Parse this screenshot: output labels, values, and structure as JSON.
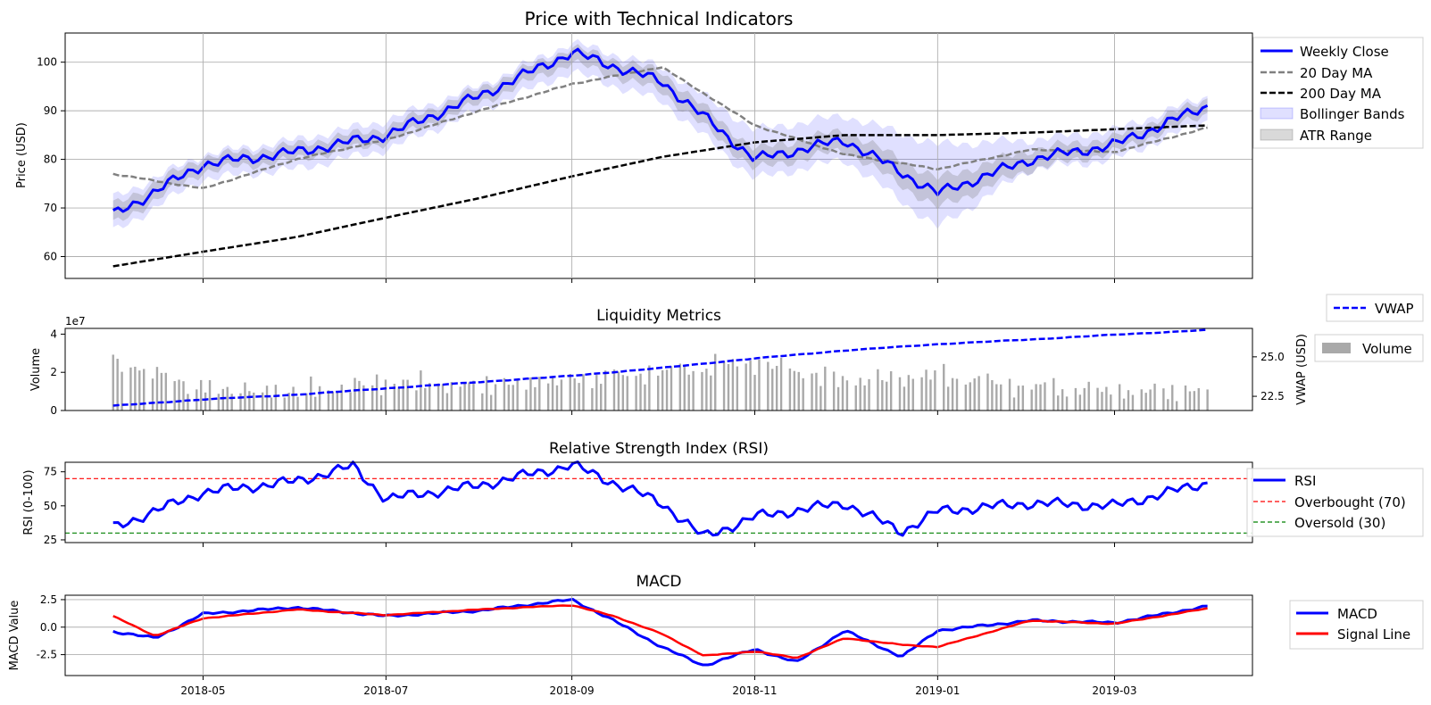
{
  "colors": {
    "close": "#0000ff",
    "ma20": "#808080",
    "ma200": "#000000",
    "bollinger": "#0000ff",
    "atr": "#808080",
    "vwap": "#0000ff",
    "volume": "#a9a9a9",
    "rsi": "#0000ff",
    "overbought": "#ff0000",
    "oversold": "#008000",
    "macd": "#0000ff",
    "signal": "#ff0000"
  },
  "x_ticks": [
    "2018-05",
    "2018-07",
    "2018-09",
    "2018-11",
    "2019-01",
    "2019-03"
  ],
  "chart_data": [
    {
      "type": "line",
      "title": "Price with Technical Indicators",
      "xlabel": "",
      "ylabel": "Price (USD)",
      "ylim": [
        55.5,
        106
      ],
      "yticks": [
        "60",
        "70",
        "80",
        "90",
        "100"
      ],
      "grid": true,
      "legend_position": "right",
      "x_range": [
        "2018-03-16",
        "2019-04-16"
      ],
      "x": [
        "2018-04-01",
        "2018-05-01",
        "2018-06-01",
        "2018-07-01",
        "2018-08-01",
        "2018-09-01",
        "2018-10-01",
        "2018-11-01",
        "2018-12-01",
        "2019-01-01",
        "2019-02-01",
        "2019-03-01",
        "2019-04-01"
      ],
      "series": [
        {
          "name": "Weekly Close",
          "values": [
            68.5,
            79,
            81.5,
            85,
            93,
            102,
            96,
            80,
            84,
            73,
            80,
            83,
            91
          ]
        },
        {
          "name": "20 Day MA",
          "values": [
            77,
            74,
            80,
            84,
            90,
            95.5,
            99,
            87,
            81,
            78,
            82,
            81.5,
            86.5
          ]
        },
        {
          "name": "200 Day MA",
          "values": [
            58,
            61,
            64,
            68,
            72,
            76.5,
            80.5,
            83.5,
            85,
            85,
            85.5,
            86.2,
            87
          ]
        },
        {
          "name": "Bollinger Bands",
          "band": "upper/lower envelope around Weekly Close",
          "upper": [
            72,
            81,
            84,
            88,
            95,
            104,
            99,
            86,
            89,
            83,
            84,
            86,
            93
          ],
          "lower": [
            65,
            76,
            78,
            82,
            90,
            98,
            92,
            76,
            80,
            66,
            78,
            80,
            88
          ]
        },
        {
          "name": "ATR Range",
          "band": "range around Weekly Close",
          "upper": [
            70.5,
            80.5,
            83,
            86.5,
            94.5,
            103,
            98,
            82,
            86,
            76,
            82,
            84.5,
            92.5
          ],
          "lower": [
            66.5,
            77.5,
            80,
            83.5,
            91.5,
            100,
            94,
            78,
            82,
            70,
            78,
            81.5,
            89.5
          ]
        }
      ]
    },
    {
      "type": "bar",
      "title": "Liquidity Metrics",
      "xlabel": "",
      "ylabel": "Volume",
      "y_scale_label": "1e7",
      "yticks": [
        "0",
        "2",
        "4"
      ],
      "ylim": [
        0,
        4.3
      ],
      "secondary_axis": {
        "ylabel": "VWAP (USD)",
        "yticks": [
          "22.5",
          "25.0"
        ],
        "ylim": [
          21.6,
          26.8
        ]
      },
      "grid": false,
      "legend_position": "right",
      "x_range": [
        "2018-03-16",
        "2019-04-16"
      ],
      "series": [
        {
          "name": "Volume",
          "type": "bar",
          "x": [
            "2018-04-01",
            "2018-05-01",
            "2018-06-01",
            "2018-07-01",
            "2018-08-01",
            "2018-09-01",
            "2018-10-01",
            "2018-11-01",
            "2018-12-01",
            "2019-01-01",
            "2019-02-01",
            "2019-03-01",
            "2019-04-01"
          ],
          "values": [
            2.7,
            1.2,
            1.0,
            1.5,
            1.3,
            1.6,
            2.0,
            2.5,
            1.5,
            1.8,
            1.2,
            1.0,
            1.0
          ]
        },
        {
          "name": "VWAP",
          "type": "line",
          "x": [
            "2018-04-01",
            "2018-05-01",
            "2018-06-01",
            "2018-07-01",
            "2018-08-01",
            "2018-09-01",
            "2018-10-01",
            "2018-11-01",
            "2018-12-01",
            "2019-01-01",
            "2019-02-01",
            "2019-03-01",
            "2019-04-01"
          ],
          "values": [
            21.9,
            22.3,
            22.6,
            23.0,
            23.4,
            23.8,
            24.3,
            24.9,
            25.4,
            25.8,
            26.1,
            26.4,
            26.7
          ]
        }
      ]
    },
    {
      "type": "line",
      "title": "Relative Strength Index (RSI)",
      "xlabel": "",
      "ylabel": "RSI (0-100)",
      "ylim": [
        23,
        82
      ],
      "yticks": [
        "25",
        "50",
        "75"
      ],
      "grid": false,
      "legend_position": "right",
      "x_range": [
        "2018-03-16",
        "2019-04-16"
      ],
      "x": [
        "2018-04-01",
        "2018-05-01",
        "2018-06-01",
        "2018-06-20",
        "2018-07-01",
        "2018-08-01",
        "2018-09-01",
        "2018-10-01",
        "2018-10-15",
        "2018-11-01",
        "2018-12-01",
        "2018-12-20",
        "2019-01-01",
        "2019-02-01",
        "2019-03-01",
        "2019-04-01"
      ],
      "series": [
        {
          "name": "RSI",
          "values": [
            34,
            60,
            68,
            79,
            55,
            65,
            80,
            52,
            27,
            42,
            52,
            31,
            46,
            52,
            50,
            67
          ]
        },
        {
          "name": "Overbought (70)",
          "values": [
            70,
            70
          ],
          "x": [
            "2018-03-16",
            "2019-04-16"
          ]
        },
        {
          "name": "Oversold (30)",
          "values": [
            30,
            30
          ],
          "x": [
            "2018-03-16",
            "2019-04-16"
          ]
        }
      ]
    },
    {
      "type": "line",
      "title": "MACD",
      "xlabel": "",
      "ylabel": "MACD Value",
      "ylim": [
        -4.4,
        2.9
      ],
      "yticks": [
        "-2.5",
        "0.0",
        "2.5"
      ],
      "grid": true,
      "legend_position": "right",
      "x_range": [
        "2018-03-16",
        "2019-04-16"
      ],
      "x": [
        "2018-04-01",
        "2018-04-15",
        "2018-05-01",
        "2018-06-01",
        "2018-07-01",
        "2018-08-01",
        "2018-09-01",
        "2018-09-15",
        "2018-10-01",
        "2018-10-15",
        "2018-11-01",
        "2018-11-15",
        "2018-12-01",
        "2018-12-20",
        "2019-01-01",
        "2019-02-01",
        "2019-03-01",
        "2019-04-01"
      ],
      "series": [
        {
          "name": "MACD",
          "values": [
            -0.4,
            -1.0,
            1.2,
            1.8,
            1.0,
            1.5,
            2.5,
            0.6,
            -1.8,
            -3.5,
            -2.0,
            -3.2,
            -0.3,
            -2.7,
            -0.3,
            0.6,
            0.4,
            1.9
          ]
        },
        {
          "name": "Signal Line",
          "values": [
            1.0,
            -0.8,
            0.8,
            1.6,
            1.1,
            1.6,
            2.0,
            1.0,
            -0.6,
            -2.6,
            -2.2,
            -2.8,
            -1.0,
            -1.6,
            -1.8,
            0.6,
            0.3,
            1.7
          ]
        }
      ]
    }
  ]
}
